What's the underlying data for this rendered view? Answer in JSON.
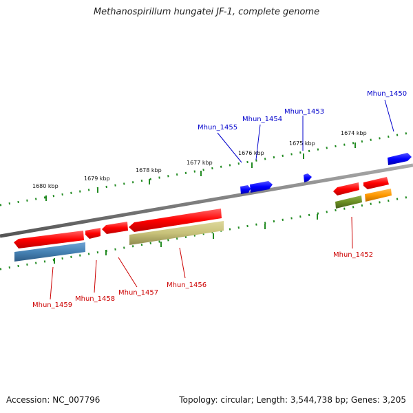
{
  "title": "Methanospirillum hungatei JF-1, complete genome",
  "accession": "Accession: NC_007796",
  "summary": "Topology: circular; Length: 3,544,738 bp; Genes: 3,205",
  "colors": {
    "backbone": "#808080",
    "tick": "#228b22",
    "top_label": "#0000cc",
    "bottom_label": "#cc0000",
    "cds": "#ff0000",
    "rna": "#0000ff",
    "blue_steel": "#4682b4",
    "khaki": "#c8c27a",
    "olive": "#6b8e23",
    "orange": "#ff9900"
  },
  "kbp_labels": [
    "1680 kbp",
    "1679 kbp",
    "1678 kbp",
    "1677 kbp",
    "1676 kbp",
    "1675 kbp",
    "1674 kbp"
  ],
  "genes_top": [
    "Mhun_1455",
    "Mhun_1454",
    "Mhun_1453",
    "Mhun_1450"
  ],
  "genes_bottom": [
    "Mhun_1459",
    "Mhun_1458",
    "Mhun_1457",
    "Mhun_1456",
    "Mhun_1452"
  ]
}
